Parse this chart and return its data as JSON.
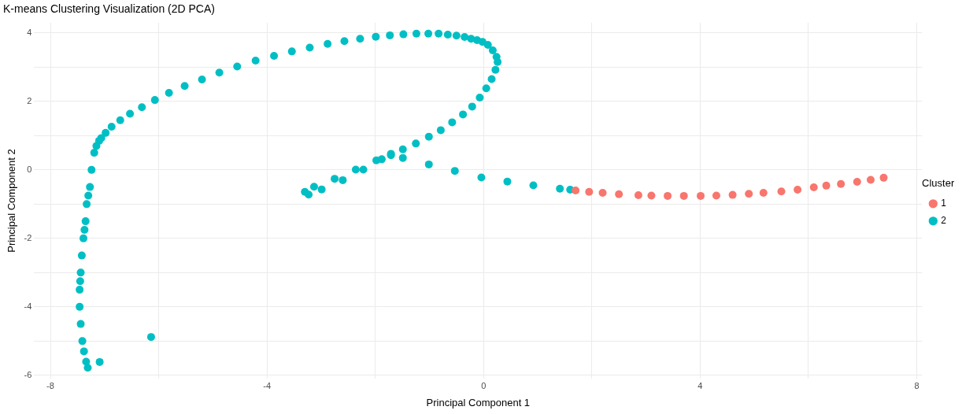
{
  "chart_data": {
    "type": "scatter",
    "title": "K-means Clustering Visualization (2D PCA)",
    "xlabel": "Principal Component 1",
    "ylabel": "Principal Component 2",
    "legend_title": "Cluster",
    "legend": "right",
    "grid": true,
    "marker": "circle",
    "xlim": [
      -8.3,
      8.1
    ],
    "ylim": [
      -6.1,
      4.3
    ],
    "xticks": [
      -8,
      {
        "value": -6,
        "label": null
      },
      -4,
      {
        "value": -2,
        "label": null
      },
      0,
      {
        "value": 2,
        "label": null
      },
      4,
      {
        "value": 6,
        "label": null
      },
      8
    ],
    "yticks": [
      -6,
      {
        "value": -5,
        "label": null
      },
      -4,
      {
        "value": -3,
        "label": null
      },
      -2,
      {
        "value": -1,
        "label": null
      },
      0,
      {
        "value": 1,
        "label": null
      },
      2,
      {
        "value": 3,
        "label": null
      },
      4
    ],
    "series": [
      {
        "name": "1",
        "color": "#f8766d",
        "x": [
          1.7,
          1.95,
          2.2,
          2.5,
          2.86,
          3.1,
          3.4,
          3.7,
          4.01,
          4.3,
          4.6,
          4.9,
          5.17,
          5.5,
          5.8,
          6.1,
          6.33,
          6.6,
          6.9,
          7.15,
          7.39
        ],
        "values": [
          -0.6,
          -0.64,
          -0.67,
          -0.71,
          -0.74,
          -0.75,
          -0.76,
          -0.76,
          -0.76,
          -0.75,
          -0.73,
          -0.7,
          -0.67,
          -0.63,
          -0.58,
          -0.51,
          -0.46,
          -0.41,
          -0.35,
          -0.29,
          -0.23
        ]
      },
      {
        "name": "2",
        "color": "#00bfc4",
        "x": [
          -6.14,
          -7.09,
          -7.31,
          -7.34,
          -7.38,
          -7.41,
          -7.44,
          -7.46,
          -7.46,
          -7.45,
          -7.44,
          -7.42,
          -7.39,
          -7.37,
          -7.35,
          -7.33,
          -7.3,
          -7.27,
          -7.24,
          -7.19,
          -7.15,
          -7.1,
          -7.06,
          -6.98,
          -6.87,
          -6.71,
          -6.53,
          -6.31,
          -6.07,
          -5.81,
          -5.52,
          -5.2,
          -4.88,
          -4.55,
          -4.21,
          -3.87,
          -3.54,
          -3.21,
          -2.88,
          -2.57,
          -2.28,
          -1.99,
          -1.73,
          -1.48,
          -1.24,
          -1.02,
          -0.83,
          -0.66,
          -0.5,
          -0.35,
          -0.23,
          -0.12,
          -0.02,
          0.08,
          0.17,
          0.24,
          0.26,
          0.22,
          0.15,
          0.05,
          -0.07,
          -0.21,
          -0.38,
          -0.58,
          -0.79,
          -1.01,
          -1.25,
          -1.49,
          -1.71,
          -1.98,
          -2.36,
          -2.75,
          -3.13,
          -3.3,
          -3.23,
          -2.99,
          -2.6,
          -2.22,
          -1.88,
          -1.71,
          -1.49,
          -1.01,
          -0.53,
          -0.04,
          0.44,
          0.92,
          1.41,
          1.6
        ],
        "values": [
          -4.88,
          -5.61,
          -5.78,
          -5.6,
          -5.3,
          -5,
          -4.5,
          -4,
          -3.5,
          -3.25,
          -3,
          -2.5,
          -2,
          -1.75,
          -1.5,
          -1,
          -0.75,
          -0.5,
          0,
          0.5,
          0.7,
          0.85,
          0.93,
          1.08,
          1.26,
          1.45,
          1.64,
          1.83,
          2.04,
          2.25,
          2.45,
          2.64,
          2.84,
          3.02,
          3.19,
          3.33,
          3.46,
          3.57,
          3.68,
          3.76,
          3.83,
          3.89,
          3.93,
          3.96,
          3.98,
          3.98,
          3.98,
          3.95,
          3.92,
          3.88,
          3.83,
          3.79,
          3.74,
          3.65,
          3.49,
          3.3,
          3.15,
          2.92,
          2.65,
          2.38,
          2.11,
          1.85,
          1.62,
          1.39,
          1.16,
          0.97,
          0.77,
          0.6,
          0.47,
          0.28,
          0.01,
          -0.26,
          -0.49,
          -0.64,
          -0.72,
          -0.57,
          -0.3,
          0.01,
          0.31,
          0.43,
          0.35,
          0.16,
          -0.03,
          -0.22,
          -0.34,
          -0.45,
          -0.55,
          -0.58
        ]
      }
    ]
  }
}
